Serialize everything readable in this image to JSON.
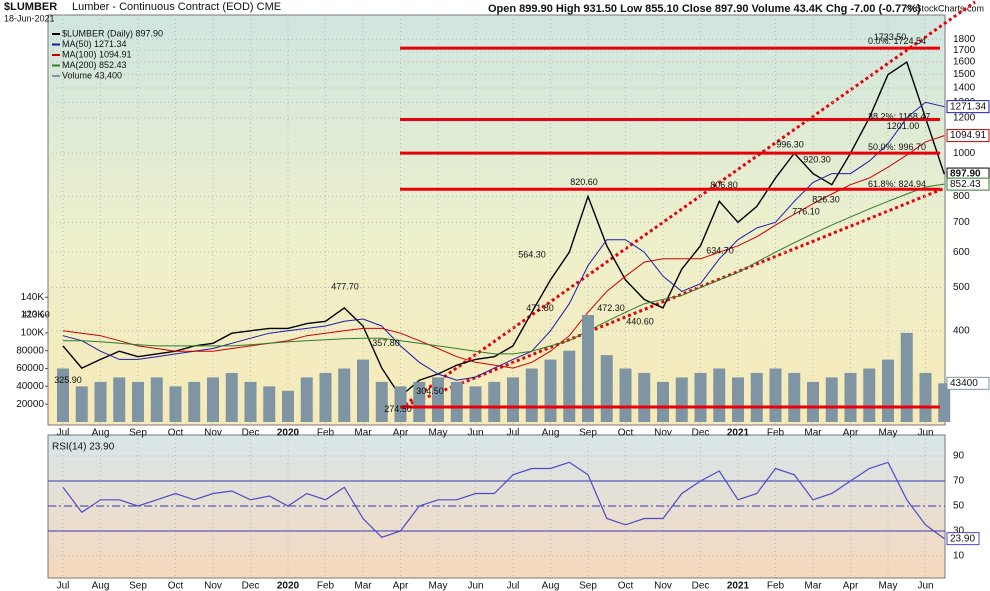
{
  "chart_data": [
    {
      "type": "line",
      "title": "$LUMBER",
      "subtitle": "Lumber - Continuous Contract (EOD) CME",
      "date": "18-Jun-2021",
      "quote": "Open 899.90  High 931.50  Low 855.10  Close 897.90  Volume 43.4K  Chg -7.00 (-0.77%)",
      "credit": "© StockCharts.com",
      "log_scale": true,
      "categories": [
        "Jul",
        null,
        "Aug",
        null,
        "Sep",
        null,
        "Oct",
        null,
        "Nov",
        null,
        "Dec",
        null,
        "2020",
        null,
        "Feb",
        null,
        "Mar",
        null,
        "Apr",
        null,
        "May",
        null,
        "Jun",
        null,
        "Jul",
        null,
        "Aug",
        null,
        "Sep",
        null,
        "Oct",
        null,
        "Nov",
        null,
        "Dec",
        null,
        "2021",
        null,
        "Feb",
        null,
        "Mar",
        null,
        "Apr",
        null,
        "May",
        null,
        "Jun",
        null
      ],
      "series": [
        {
          "name": "$LUMBER (Daily) 897.90",
          "color": "#000000",
          "width": 1.4,
          "values": [
            370,
            330,
            345,
            360,
            350,
            355,
            360,
            370,
            375,
            395,
            400,
            405,
            405,
            415,
            420,
            450,
            410,
            330,
            285,
            310,
            320,
            335,
            345,
            350,
            370,
            440,
            520,
            600,
            800,
            620,
            520,
            470,
            450,
            550,
            620,
            780,
            700,
            760,
            880,
            1000,
            900,
            850,
            1000,
            1200,
            1500,
            1600,
            1200,
            897.9
          ]
        },
        {
          "name": "MA(50) 1271.34",
          "color": "#1c1ca8",
          "width": 1,
          "values": [
            390,
            380,
            360,
            345,
            345,
            350,
            355,
            360,
            365,
            375,
            385,
            395,
            400,
            405,
            410,
            420,
            425,
            410,
            370,
            340,
            320,
            310,
            315,
            330,
            345,
            360,
            400,
            460,
            560,
            640,
            640,
            600,
            530,
            490,
            510,
            580,
            640,
            680,
            700,
            780,
            860,
            900,
            900,
            960,
            1050,
            1200,
            1300,
            1271.34
          ]
        },
        {
          "name": "MA(100) 1094.91",
          "color": "#cc0000",
          "width": 1,
          "values": [
            400,
            395,
            390,
            380,
            370,
            365,
            360,
            360,
            360,
            365,
            370,
            375,
            380,
            390,
            395,
            400,
            405,
            405,
            395,
            380,
            365,
            350,
            340,
            335,
            330,
            340,
            360,
            390,
            440,
            490,
            530,
            570,
            580,
            580,
            580,
            600,
            620,
            650,
            690,
            730,
            770,
            810,
            850,
            880,
            930,
            990,
            1060,
            1094.91
          ]
        },
        {
          "name": "MA(200) 852.43",
          "color": "#2e7d2e",
          "width": 1,
          "values": [
            380,
            380,
            378,
            375,
            372,
            370,
            370,
            370,
            370,
            370,
            372,
            375,
            378,
            380,
            382,
            384,
            385,
            385,
            380,
            375,
            370,
            365,
            360,
            355,
            355,
            360,
            370,
            380,
            400,
            420,
            440,
            460,
            470,
            480,
            500,
            520,
            540,
            570,
            600,
            630,
            660,
            690,
            720,
            750,
            780,
            810,
            840,
            852.43
          ]
        },
        {
          "name": "Volume 43,400",
          "color": "#7f95a3",
          "axis": "y2",
          "type": "bar",
          "values": [
            60000,
            40000,
            45000,
            50000,
            45000,
            50000,
            40000,
            45000,
            50000,
            55000,
            45000,
            40000,
            35000,
            50000,
            55000,
            60000,
            70000,
            45000,
            40000,
            45000,
            50000,
            45000,
            40000,
            45000,
            50000,
            60000,
            70000,
            80000,
            120000,
            75000,
            60000,
            55000,
            45000,
            50000,
            55000,
            60000,
            50000,
            55000,
            60000,
            55000,
            45000,
            50000,
            55000,
            60000,
            70000,
            100000,
            55000,
            43400
          ]
        }
      ],
      "right_labels": [
        "897.90",
        "1271.34",
        "1094.91",
        "852.43",
        "43400"
      ],
      "ylim": [
        246,
        2040
      ],
      "yticks": [
        400,
        500,
        600,
        700,
        800,
        1000,
        1200,
        1300,
        1400,
        1500,
        1600,
        1700,
        1800
      ],
      "y2lim": [
        0,
        460000
      ],
      "y2ticks": [
        20000,
        40000,
        60000,
        80000,
        {
          "value": 100000,
          "label": "100K"
        },
        {
          "value": 120000,
          "label": "120K"
        },
        {
          "value": 140000,
          "label": "140K"
        }
      ],
      "levels": [
        1720,
        1190,
        1000,
        830,
        270
      ],
      "level_color": "#e8000b",
      "fib_labels": [
        "0.0%: 1724.54",
        "38.2%: 1168.47",
        "50.0%: 996.70",
        "61.8%: 824.94"
      ],
      "annotations": [
        {
          "value": 413.6,
          "label": "413.60"
        },
        {
          "value": 325.9,
          "label": "325.90"
        },
        {
          "value": 477.7,
          "label": "477.70"
        },
        {
          "value": 357.8,
          "label": "357.80"
        },
        {
          "value": 274.5,
          "label": "274.50"
        },
        {
          "value": 304.5,
          "label": "304.50"
        },
        {
          "value": 564.3,
          "label": "564.30"
        },
        {
          "value": 471.8,
          "label": "471.80"
        },
        {
          "value": 820.6,
          "label": "820.60"
        },
        {
          "value": 472.3,
          "label": "472.30"
        },
        {
          "value": 440.6,
          "label": "440.60"
        },
        {
          "value": 806.8,
          "label": "806.80"
        },
        {
          "value": 634.7,
          "label": "634.70"
        },
        {
          "value": 996.3,
          "label": "996.30"
        },
        {
          "value": 920.3,
          "label": "920.30"
        },
        {
          "value": 776.1,
          "label": "776.10"
        },
        {
          "value": 826.3,
          "label": "826.30"
        },
        {
          "value": 1733.5,
          "label": "1733.50"
        },
        {
          "value": 1201,
          "label": "1201.00"
        }
      ]
    },
    {
      "type": "line",
      "title": "RSI(14) 23.90",
      "categories": [
        "Jul",
        null,
        "Aug",
        null,
        "Sep",
        null,
        "Oct",
        null,
        "Nov",
        null,
        "Dec",
        null,
        "2020",
        null,
        "Feb",
        null,
        "Mar",
        null,
        "Apr",
        null,
        "May",
        null,
        "Jun",
        null,
        "Jul",
        null,
        "Aug",
        null,
        "Sep",
        null,
        "Oct",
        null,
        "Nov",
        null,
        "Dec",
        null,
        "2021",
        null,
        "Feb",
        null,
        "Mar",
        null,
        "Apr",
        null,
        "May",
        null,
        "Jun",
        null
      ],
      "series": [
        {
          "name": "RSI(14)",
          "color": "#4b4bc8",
          "values": [
            65,
            45,
            55,
            55,
            50,
            55,
            60,
            55,
            60,
            62,
            55,
            58,
            50,
            60,
            55,
            65,
            40,
            25,
            30,
            50,
            55,
            55,
            60,
            60,
            75,
            80,
            80,
            85,
            75,
            40,
            35,
            40,
            40,
            60,
            70,
            78,
            55,
            60,
            80,
            75,
            55,
            60,
            70,
            80,
            85,
            55,
            35,
            23.9
          ]
        }
      ],
      "last_label": "23.90",
      "ylim": [
        -7.6,
        106.8
      ],
      "yticks": [
        10,
        30,
        50,
        70,
        90
      ],
      "bands": [
        30,
        50,
        70
      ]
    }
  ]
}
